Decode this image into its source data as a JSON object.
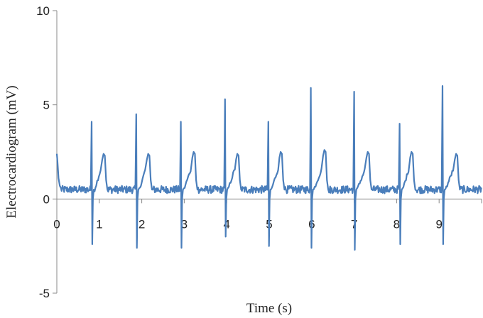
{
  "chart_data": {
    "type": "line",
    "title": "",
    "xlabel": "Time (s)",
    "ylabel": "Electrocardiogram (mV)",
    "xlim": [
      0,
      10
    ],
    "ylim": [
      -5,
      10
    ],
    "x_ticks": [
      "0",
      "1",
      "2",
      "3",
      "4",
      "5",
      "6",
      "7",
      "8",
      "9"
    ],
    "y_ticks": [
      "10",
      "5",
      "0",
      "-5"
    ],
    "grid": false,
    "legend": "none",
    "line_color": "#4a7ebb",
    "beats": [
      {
        "r_time": 0.82,
        "r_peak": 4.1,
        "s_trough": -2.4,
        "t_time": 1.1,
        "t_peak": 2.4
      },
      {
        "r_time": 1.87,
        "r_peak": 4.5,
        "s_trough": -2.6,
        "t_time": 2.15,
        "t_peak": 2.4
      },
      {
        "r_time": 2.92,
        "r_peak": 4.1,
        "s_trough": -2.6,
        "t_time": 3.22,
        "t_peak": 2.5
      },
      {
        "r_time": 3.96,
        "r_peak": 5.3,
        "s_trough": -2.0,
        "t_time": 4.25,
        "t_peak": 2.4
      },
      {
        "r_time": 4.98,
        "r_peak": 4.1,
        "s_trough": -2.5,
        "t_time": 5.27,
        "t_peak": 2.5
      },
      {
        "r_time": 5.98,
        "r_peak": 5.9,
        "s_trough": -2.6,
        "t_time": 6.3,
        "t_peak": 2.6
      },
      {
        "r_time": 7.0,
        "r_peak": 5.7,
        "s_trough": -2.7,
        "t_time": 7.32,
        "t_peak": 2.5
      },
      {
        "r_time": 8.07,
        "r_peak": 4.0,
        "s_trough": -2.4,
        "t_time": 8.35,
        "t_peak": 2.5
      },
      {
        "r_time": 9.08,
        "r_peak": 6.0,
        "s_trough": -2.4,
        "t_time": 9.4,
        "t_peak": 2.4
      }
    ],
    "start_value": 2.4,
    "baseline": 0.5,
    "end_time": 10
  }
}
